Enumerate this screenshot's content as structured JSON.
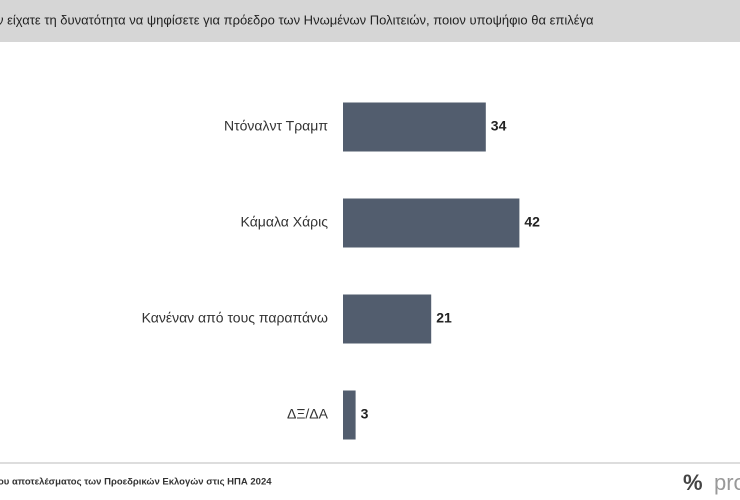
{
  "chart_data": {
    "type": "bar",
    "orientation": "horizontal",
    "title": "ν είχατε τη δυνατότητα να ψηφίσετε για πρόεδρο  των Ηνωμένων Πολιτειών, ποιον υποψήφιο θα επιλέγα",
    "categories": [
      "Ντόναλντ Τραμπ",
      "Κάμαλα Χάρις",
      "Κανέναν από τους παραπάνω",
      "ΔΞ/ΔΑ"
    ],
    "values": [
      34,
      42,
      21,
      3
    ],
    "color": "#525d6e",
    "footnote": "ου αποτελέσματος των Προεδρικών Εκλογών στις ΗΠΑ 2024",
    "logo_symbol": "%",
    "logo_text": "pro"
  }
}
